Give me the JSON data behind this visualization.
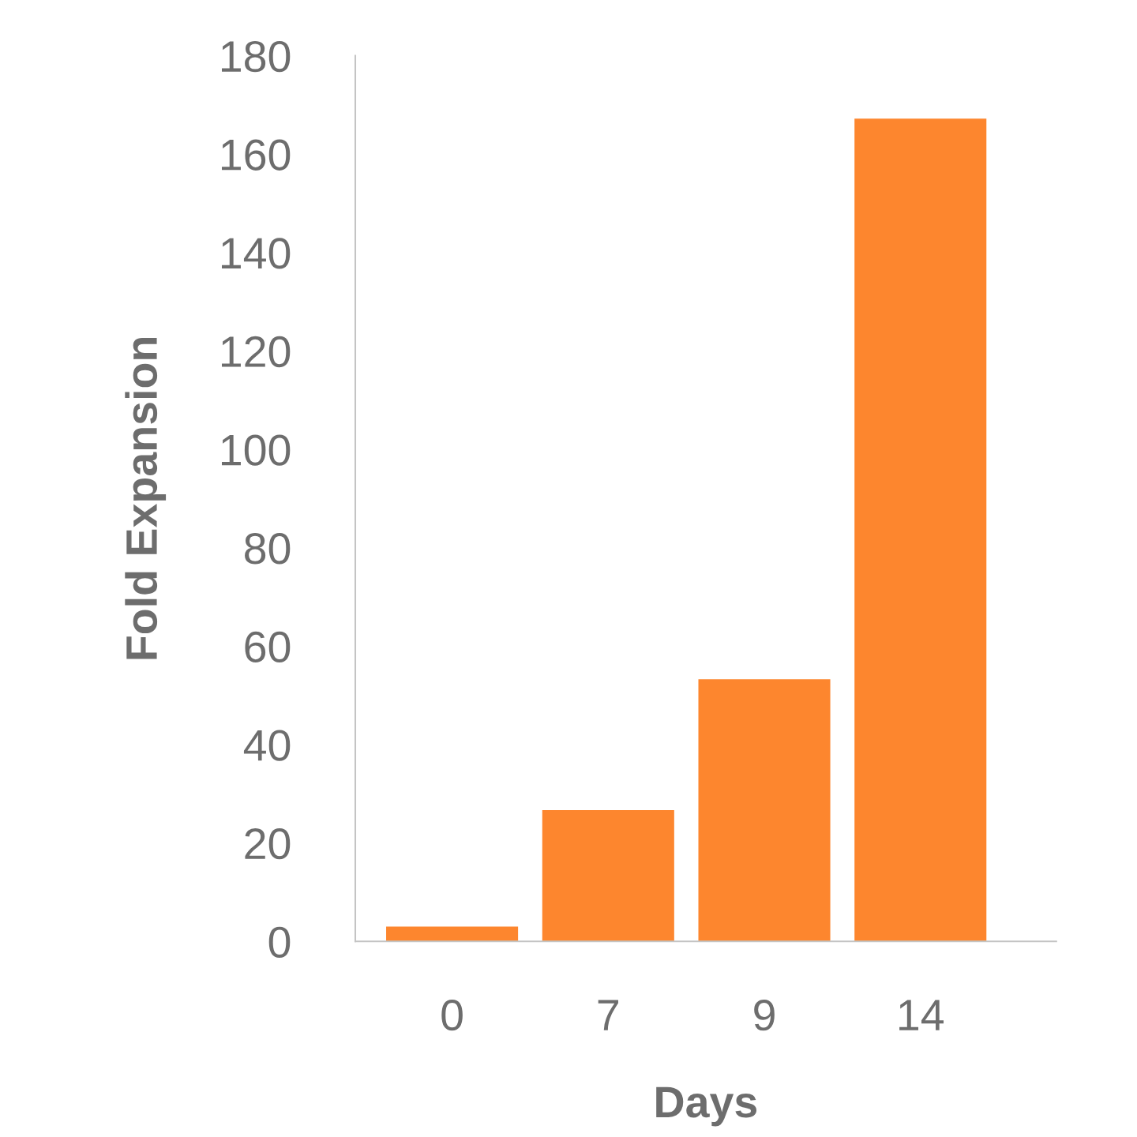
{
  "chart_data": {
    "type": "bar",
    "xlabel": "Days",
    "ylabel": "Fold Expansion",
    "categories": [
      "0",
      "7",
      "9",
      "14"
    ],
    "values": [
      3,
      26.7,
      53.3,
      167.2
    ],
    "color": "#fd862e",
    "ylim": [
      0,
      180
    ],
    "yticks": [
      0,
      20,
      40,
      60,
      80,
      100,
      120,
      140,
      160,
      180
    ],
    "grid": false
  }
}
